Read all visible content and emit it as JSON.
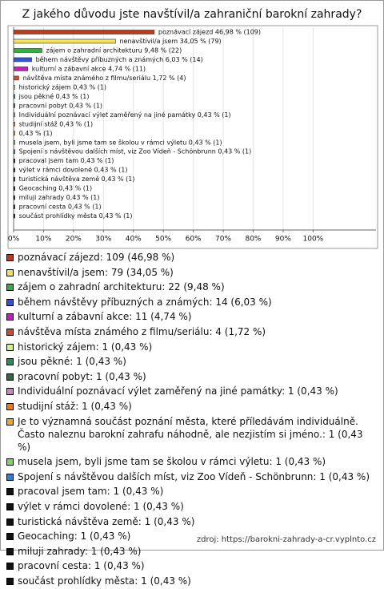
{
  "chart_data": {
    "type": "hbar",
    "title": "Z jakého důvodu jste navštívil/a zahraniční barokní zahrady?",
    "categories": [
      "poznávací zájezd: 109 (46,98 %)",
      "nenavštívil/a jsem: 79 (34,05 %)",
      "zájem o zahradní architekturu: 22 (9,48 %)",
      "během návštěvy příbuzných a známých: 14 (6,03 %)",
      "kulturní a zábavní akce: 11 (4,74 %)",
      "návštěva místa známého z filmu/seriálu: 4 (1,72 %)",
      "historický zájem: 1 (0,43 %)",
      "jsou pěkné: 1 (0,43 %)",
      "pracovní pobyt: 1 (0,43 %)",
      "Individuální poznávací výlet zaměřený na jiné památky: 1 (0,43 %)",
      "studijní stáž: 1 (0,43 %)",
      "Je to významná součást poznání města, které příledávám individuálně. Často naleznu barokní zahrafu náhodně, ale nezjistím si jméno.: 1 (0,43 %)",
      "musela jsem, byli jsme tam se školou v rámci výletu: 1 (0,43 %)",
      "Spojení s návštěvou dalších míst, viz Zoo Vídeň - Schönbrunn: 1 (0,43 %)",
      "pracoval jsem tam: 1 (0,43 %)",
      "výlet v rámci dovolené: 1 (0,43 %)",
      "turistická návštěva země: 1 (0,43 %)",
      "Geocaching: 1 (0,43 %)",
      "miluji zahrady: 1 (0,43 %)",
      "pracovní cesta: 1 (0,43 %)",
      "součást prohlídky města: 1 (0,43 %)"
    ],
    "values": [
      46.98,
      34.05,
      9.48,
      6.03,
      4.74,
      1.72,
      0.43,
      0.43,
      0.43,
      0.43,
      0.43,
      0.43,
      0.43,
      0.43,
      0.43,
      0.43,
      0.43,
      0.43,
      0.43,
      0.43,
      0.43
    ],
    "value_labels": [
      "poznávací zájezd 46,98 % (109)",
      "nenavštívil/a jsem 34,05 % (79)",
      "zájem o zahradní architekturu 9,48 % (22)",
      "během návštěvy příbuzných a známých 6,03 % (14)",
      "kulturní a zábavní akce 4,74 % (11)",
      "návštěva místa známého z filmu/seriálu 1,72 % (4)",
      "historický zájem 0,43 % (1)",
      "jsou pěkné 0,43 % (1)",
      "pracovní pobyt 0,43 % (1)",
      "Individuální poznávací výlet zaměřený na jiné památky 0,43 % (1)",
      "studijní stáž 0,43 % (1)",
      "0,43 % (1)",
      "musela jsem, byli jsme tam se školou v rámci výletu 0,43 % (1)",
      "Spojení s návštěvou dalších míst, viz Zoo Vídeň - Schönbrunn 0,43 % (1)",
      "pracoval jsem tam 0,43 % (1)",
      "výlet v rámci dovolené 0,43 % (1)",
      "turistická návštěva země 0,43 % (1)",
      "Geocaching 0,43 % (1)",
      "miluji zahrady 0,43 % (1)",
      "pracovní cesta 0,43 % (1)",
      "součást prohlídky města 0,43 % (1)"
    ],
    "colors": [
      "#c0391f",
      "#f4e34c",
      "#2fb33a",
      "#3452d8",
      "#c21fc2",
      "#d9482a",
      "#d6ef88",
      "#2e8b63",
      "#2f6a3a",
      "#c58ac5",
      "#ee7a1c",
      "#f2a81d",
      "#7bd85a",
      "#2f7fd6",
      "#111111",
      "#111111",
      "#111111",
      "#111111",
      "#111111",
      "#111111",
      "#111111"
    ],
    "xlim": [
      0,
      121
    ],
    "xticks": [
      {
        "value": 0,
        "label": "0%"
      },
      {
        "value": 10,
        "label": "10%"
      },
      {
        "value": 20,
        "label": "20%"
      },
      {
        "value": 30,
        "label": "30%"
      },
      {
        "value": 40,
        "label": "40%"
      },
      {
        "value": 50,
        "label": "50%"
      },
      {
        "value": 60,
        "label": "60%"
      },
      {
        "value": 70,
        "label": "70%"
      },
      {
        "value": 80,
        "label": "80%"
      },
      {
        "value": 90,
        "label": "90%"
      },
      {
        "value": 100,
        "label": "100%"
      }
    ],
    "grid": true,
    "source": "zdroj: https://barokni-zahrady-a-cr.vyplnto.cz"
  }
}
